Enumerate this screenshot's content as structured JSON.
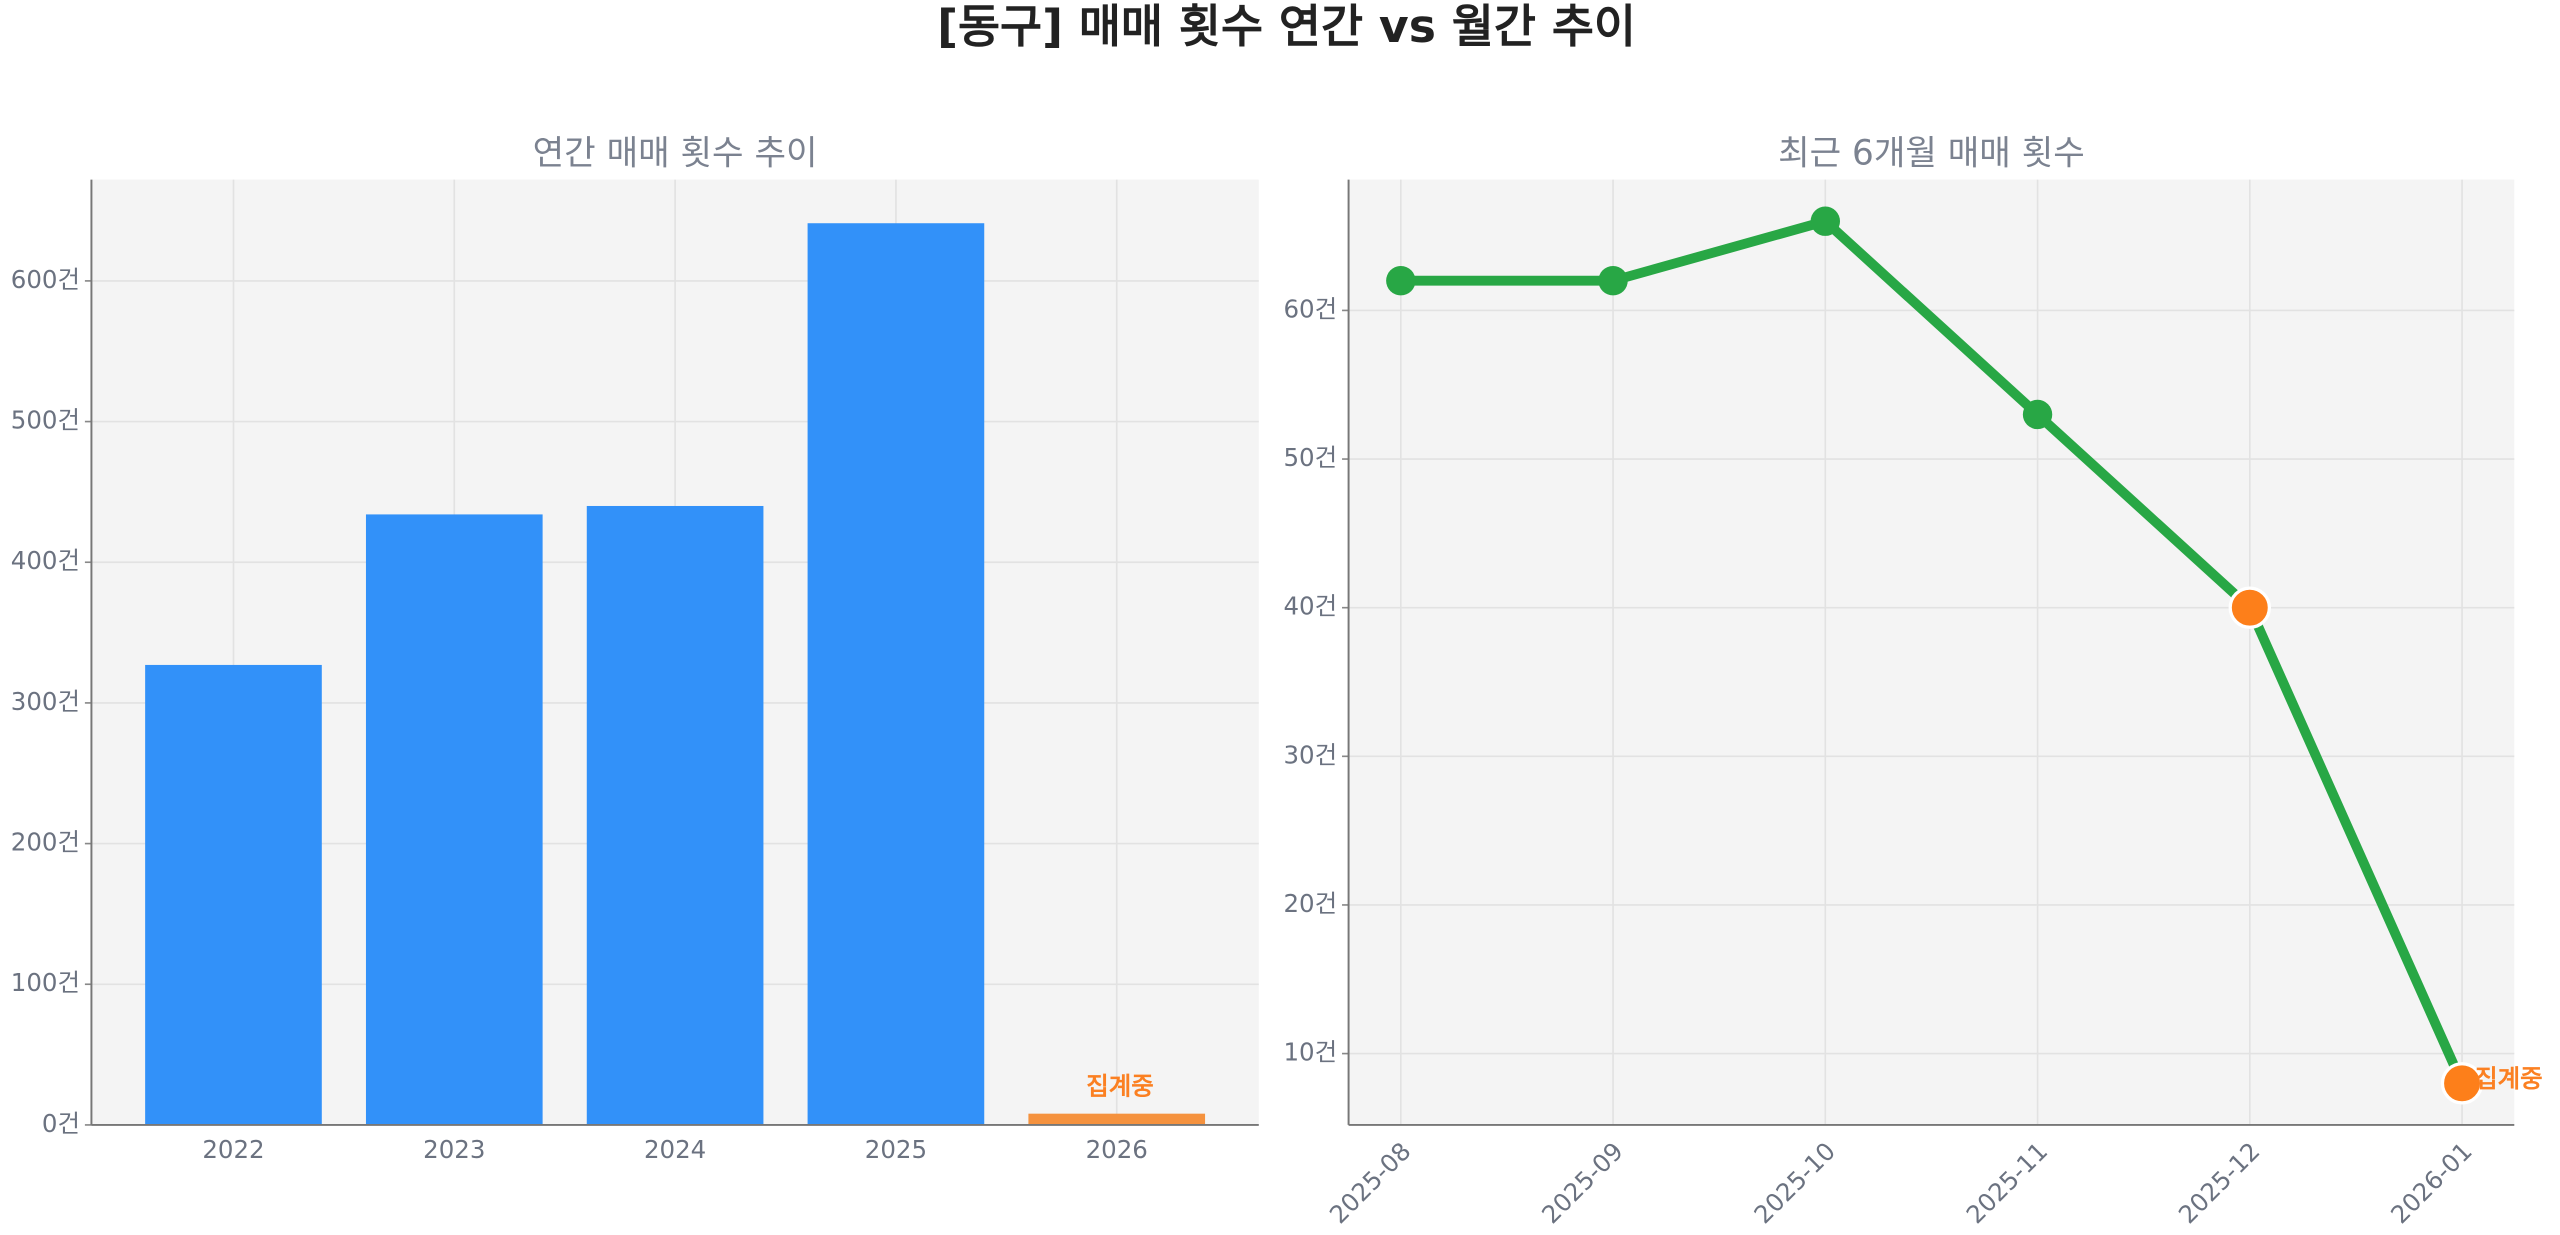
{
  "title": "[동구] 매매 횟수 연간 vs 월간 추이",
  "chart_data": [
    {
      "type": "bar",
      "title": "연간 매매 횟수 추이",
      "categories": [
        "2022",
        "2023",
        "2024",
        "2025",
        "2026"
      ],
      "values": [
        327,
        434,
        440,
        641,
        8
      ],
      "colors": [
        "#3291f9",
        "#3291f9",
        "#3291f9",
        "#3291f9",
        "#f5923e"
      ],
      "ylim": [
        0,
        672
      ],
      "yticks": [
        {
          "value": 0,
          "label": "0건"
        },
        {
          "value": 100,
          "label": "100건"
        },
        {
          "value": 200,
          "label": "200건"
        },
        {
          "value": 300,
          "label": "300건"
        },
        {
          "value": 400,
          "label": "400건"
        },
        {
          "value": 500,
          "label": "500건"
        },
        {
          "value": 600,
          "label": "600건"
        }
      ],
      "annotation": "집계중",
      "grid": true
    },
    {
      "type": "line",
      "title": "최근 6개월 매매 횟수",
      "categories": [
        "2025-08",
        "2025-09",
        "2025-10",
        "2025-11",
        "2025-12",
        "2026-01"
      ],
      "values": [
        62,
        62,
        66,
        53,
        40,
        8
      ],
      "color": "#28a745",
      "marker_colors": [
        "#28a745",
        "#28a745",
        "#28a745",
        "#28a745",
        "#fd7f1a",
        "#fd7f1a"
      ],
      "ylim": [
        5.2,
        68.8
      ],
      "yticks": [
        {
          "value": 10,
          "label": "10건"
        },
        {
          "value": 20,
          "label": "20건"
        },
        {
          "value": 30,
          "label": "30건"
        },
        {
          "value": 40,
          "label": "40건"
        },
        {
          "value": 50,
          "label": "50건"
        },
        {
          "value": 60,
          "label": "60건"
        }
      ],
      "annotation": "집계중",
      "grid": true
    }
  ]
}
